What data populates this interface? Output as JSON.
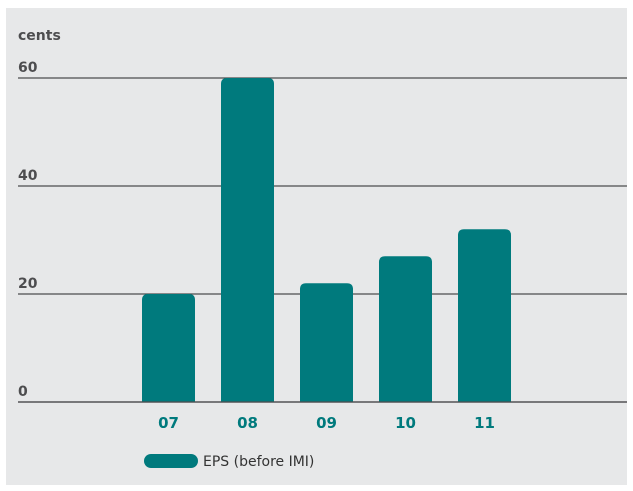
{
  "chart_data": {
    "type": "bar",
    "ylabel": "cents",
    "categories": [
      "07",
      "08",
      "09",
      "10",
      "11"
    ],
    "series": [
      {
        "name": "EPS (before IMI)",
        "values": [
          20,
          60,
          22,
          27,
          32
        ],
        "color": "#007a7d"
      }
    ],
    "ylim": [
      0,
      60
    ],
    "yticks": [
      "0",
      "20",
      "40",
      "60"
    ],
    "grid": true,
    "legend": "bottom-left"
  },
  "colors": {
    "bar": "#007a7d",
    "category_label": "#007a7d",
    "gridline": "#4d4d4f",
    "panel_background": "#e7e8e9"
  }
}
